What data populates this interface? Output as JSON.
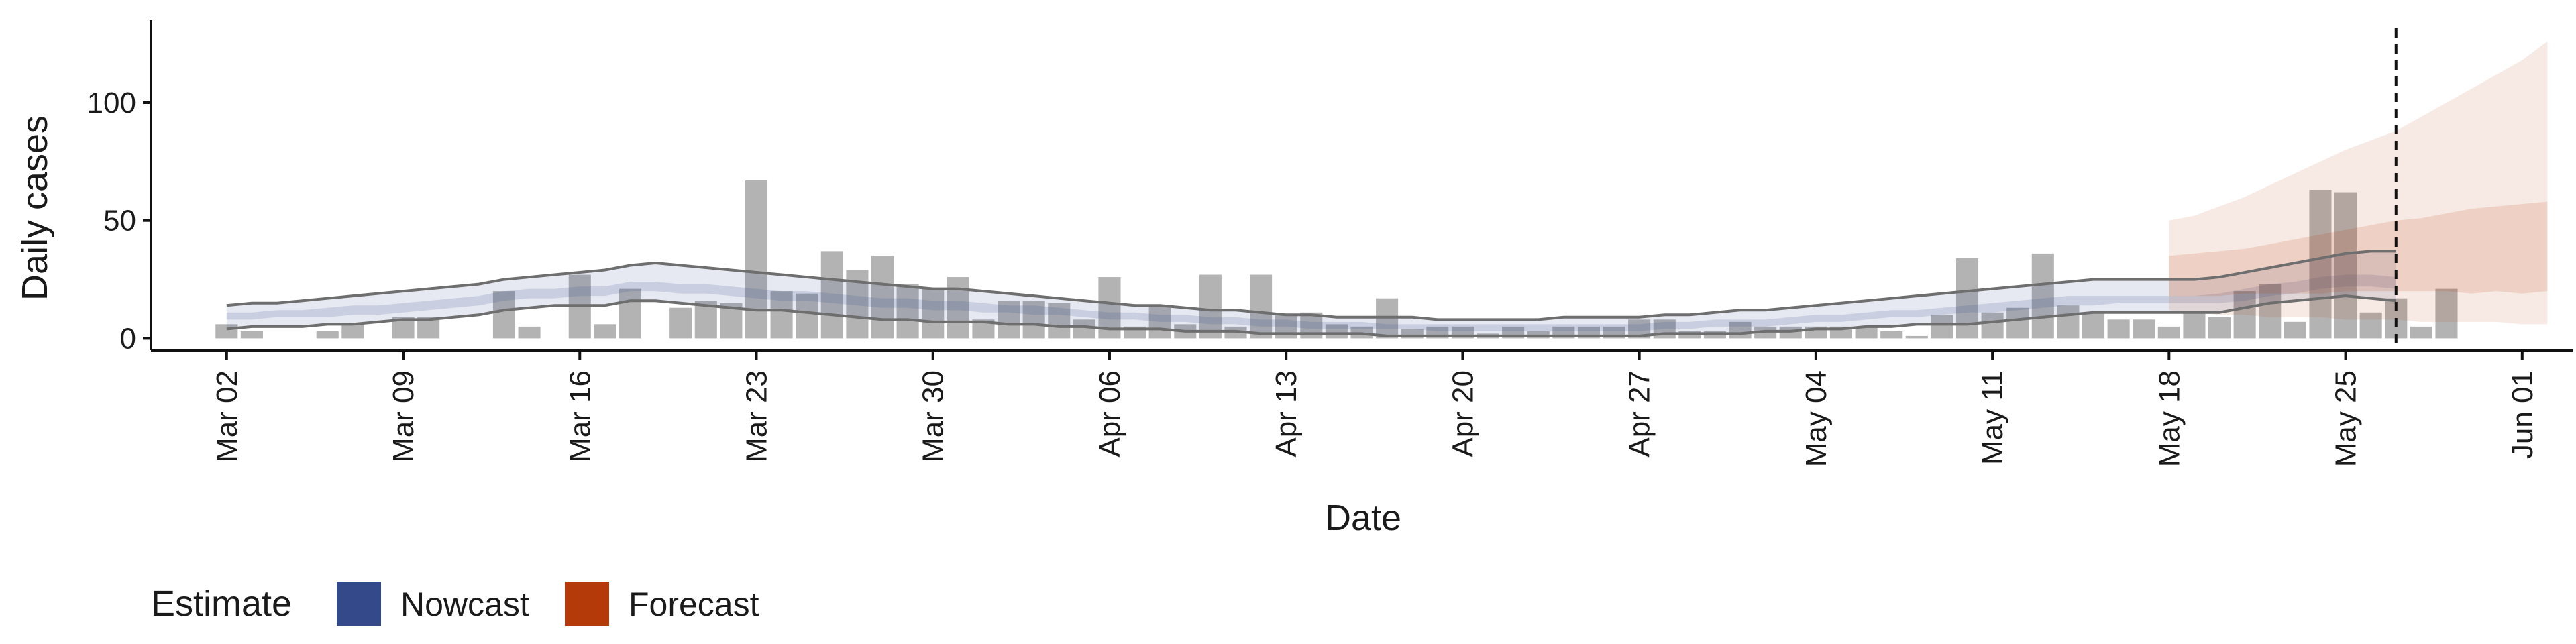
{
  "chart_data": {
    "type": "bar",
    "xlabel": "Date",
    "ylabel": "Daily cases",
    "ylim": [
      -5,
      135
    ],
    "yticks": [
      0,
      50,
      100
    ],
    "xlim": [
      "2020-02-28",
      "2020-06-03"
    ],
    "x_tick_labels": [
      "Mar 02",
      "Mar 09",
      "Mar 16",
      "Mar 23",
      "Mar 30",
      "Apr 06",
      "Apr 13",
      "Apr 20",
      "Apr 27",
      "May 04",
      "May 11",
      "May 18",
      "May 25",
      "Jun 01"
    ],
    "x_tick_dates": [
      "2020-03-02",
      "2020-03-09",
      "2020-03-16",
      "2020-03-23",
      "2020-03-30",
      "2020-04-06",
      "2020-04-13",
      "2020-04-20",
      "2020-04-27",
      "2020-05-04",
      "2020-05-11",
      "2020-05-18",
      "2020-05-25",
      "2020-06-01"
    ],
    "bars": {
      "start_date": "2020-03-02",
      "values": [
        6,
        3,
        0,
        0,
        3,
        6,
        0,
        9,
        9,
        0,
        0,
        20,
        5,
        0,
        27,
        6,
        21,
        0,
        13,
        16,
        15,
        67,
        20,
        19,
        37,
        29,
        35,
        23,
        21,
        26,
        8,
        16,
        16,
        15,
        8,
        26,
        5,
        14,
        6,
        27,
        5,
        27,
        10,
        11,
        6,
        5,
        17,
        4,
        5,
        5,
        2,
        5,
        3,
        5,
        5,
        5,
        8,
        8,
        3,
        3,
        7,
        5,
        5,
        5,
        5,
        5,
        3,
        1,
        10,
        34,
        11,
        13,
        36,
        14,
        11,
        8,
        8,
        5,
        11,
        9,
        20,
        23,
        7,
        63,
        62,
        11,
        17,
        5,
        21
      ],
      "color": "#b3b3b3"
    },
    "nowcast": {
      "name": "Nowcast",
      "color": "#34498a",
      "start_date": "2020-03-02",
      "lower90": [
        4,
        5,
        5,
        5,
        6,
        6,
        7,
        8,
        8,
        9,
        10,
        12,
        13,
        14,
        14,
        14,
        16,
        16,
        15,
        14,
        13,
        12,
        12,
        11,
        10,
        9,
        8,
        8,
        7,
        7,
        7,
        6,
        6,
        5,
        5,
        4,
        4,
        4,
        3,
        3,
        3,
        2,
        2,
        2,
        2,
        2,
        1,
        1,
        1,
        1,
        1,
        1,
        1,
        1,
        1,
        1,
        1,
        2,
        2,
        2,
        2,
        3,
        3,
        4,
        4,
        5,
        5,
        6,
        6,
        6,
        7,
        8,
        9,
        10,
        11,
        11,
        11,
        11,
        11,
        11,
        13,
        15,
        16,
        17,
        18,
        17,
        16
      ],
      "lower50": [
        8,
        8,
        9,
        9,
        9,
        10,
        10,
        11,
        12,
        13,
        14,
        16,
        17,
        17,
        18,
        18,
        20,
        20,
        19,
        19,
        18,
        17,
        16,
        16,
        15,
        14,
        13,
        13,
        12,
        12,
        11,
        11,
        10,
        10,
        9,
        8,
        8,
        7,
        7,
        6,
        6,
        5,
        5,
        4,
        4,
        4,
        4,
        4,
        3,
        3,
        3,
        3,
        3,
        3,
        3,
        3,
        3,
        4,
        4,
        5,
        5,
        5,
        6,
        7,
        7,
        8,
        9,
        9,
        10,
        11,
        11,
        12,
        13,
        14,
        14,
        15,
        15,
        15,
        15,
        15,
        16,
        18,
        19,
        21,
        22,
        22,
        21
      ],
      "upper50": [
        11,
        11,
        12,
        12,
        13,
        14,
        14,
        15,
        16,
        17,
        18,
        20,
        21,
        21,
        22,
        22,
        24,
        24,
        23,
        23,
        22,
        21,
        20,
        20,
        19,
        18,
        17,
        17,
        16,
        16,
        15,
        14,
        14,
        13,
        12,
        11,
        11,
        10,
        10,
        9,
        9,
        8,
        8,
        7,
        7,
        7,
        6,
        6,
        6,
        6,
        6,
        6,
        6,
        6,
        6,
        6,
        6,
        7,
        7,
        8,
        8,
        8,
        9,
        10,
        10,
        11,
        12,
        12,
        13,
        14,
        15,
        16,
        17,
        18,
        18,
        18,
        18,
        18,
        18,
        19,
        21,
        23,
        24,
        26,
        27,
        27,
        26
      ],
      "upper90": [
        14,
        15,
        15,
        16,
        17,
        18,
        19,
        20,
        21,
        22,
        23,
        25,
        26,
        27,
        28,
        29,
        31,
        32,
        31,
        30,
        29,
        28,
        27,
        26,
        25,
        24,
        23,
        22,
        21,
        21,
        20,
        19,
        18,
        17,
        16,
        15,
        14,
        14,
        13,
        12,
        12,
        11,
        10,
        10,
        9,
        9,
        9,
        9,
        8,
        8,
        8,
        8,
        8,
        9,
        9,
        9,
        9,
        10,
        10,
        11,
        12,
        12,
        13,
        14,
        15,
        16,
        17,
        18,
        19,
        20,
        21,
        22,
        23,
        24,
        25,
        25,
        25,
        25,
        25,
        26,
        28,
        30,
        32,
        34,
        36,
        37,
        37
      ]
    },
    "forecast": {
      "name": "Forecast",
      "color": "#b53a0a",
      "start_date": "2020-05-18",
      "lower90": [
        12,
        11,
        10,
        10,
        9,
        9,
        9,
        8,
        8,
        8,
        7,
        7,
        7,
        7,
        6,
        6
      ],
      "lower50": [
        18,
        18,
        18,
        19,
        19,
        19,
        19,
        20,
        20,
        20,
        20,
        20,
        19,
        20,
        19,
        20
      ],
      "upper50": [
        35,
        36,
        37,
        38,
        40,
        42,
        44,
        46,
        48,
        50,
        51,
        53,
        55,
        56,
        57,
        58
      ],
      "upper90": [
        50,
        52,
        56,
        60,
        65,
        70,
        75,
        80,
        84,
        88,
        94,
        100,
        106,
        112,
        118,
        126
      ]
    },
    "reference_line": {
      "date": "2020-05-27",
      "style": "dashed"
    },
    "legend": {
      "title": "Estimate",
      "placement": "bottom-left",
      "items": [
        {
          "label": "Nowcast",
          "color": "#34498a"
        },
        {
          "label": "Forecast",
          "color": "#b53a0a"
        }
      ]
    }
  }
}
